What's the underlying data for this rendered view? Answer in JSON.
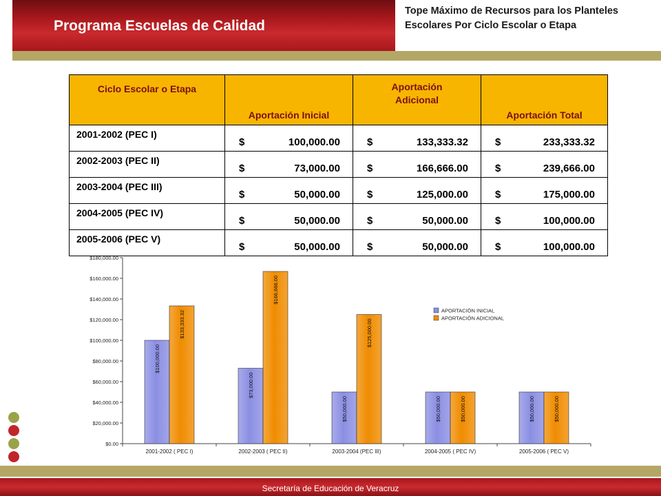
{
  "header": {
    "title": "Programa Escuelas de Calidad"
  },
  "subtitle": "Tope Máximo de Recursos para los Planteles Escolares Por Ciclo Escolar o Etapa",
  "table": {
    "headers": [
      "Ciclo Escolar o Etapa",
      "Aportación Inicial",
      "Aportación Adicional",
      "Aportación Total"
    ],
    "currency": "$",
    "rows": [
      {
        "ciclo": "2001-2002 (PEC I)",
        "inicial": "100,000.00",
        "adicional": "133,333.32",
        "total": "233,333.32"
      },
      {
        "ciclo": "2002-2003 (PEC II)",
        "inicial": "73,000.00",
        "adicional": "166,666.00",
        "total": "239,666.00"
      },
      {
        "ciclo": "2003-2004 (PEC III)",
        "inicial": "50,000.00",
        "adicional": "125,000.00",
        "total": "175,000.00"
      },
      {
        "ciclo": "2004-2005 (PEC IV)",
        "inicial": "50,000.00",
        "adicional": "50,000.00",
        "total": "100,000.00"
      },
      {
        "ciclo": "2005-2006 (PEC V)",
        "inicial": "50,000.00",
        "adicional": "50,000.00",
        "total": "100,000.00"
      }
    ]
  },
  "chart_data": {
    "type": "bar",
    "categories": [
      "2001-2002 ( PEC I)",
      "2002-2003 ( PEC II)",
      "2003-2004 (PEC III)",
      "2004-2005 ( PEC IV)",
      "2005-2006 ( PEC V)"
    ],
    "series": [
      {
        "name": "APORTACIÓN INICIAL",
        "values": [
          100000,
          73000,
          50000,
          50000,
          50000
        ],
        "labels": [
          "$100,000.00",
          "$73,000.00",
          "$50,000.00",
          "$50,000.00",
          "$50,000.00"
        ],
        "color": "#8b8fe3"
      },
      {
        "name": "APORTACIÓN ADICIONAL",
        "values": [
          133333.32,
          166666,
          125000,
          50000,
          50000
        ],
        "labels": [
          "$133,333.32",
          "$166,666.00",
          "$125,000.00",
          "$50,000.00",
          "$50,000.00"
        ],
        "color": "#f08c00"
      }
    ],
    "ylim": [
      0,
      180000
    ],
    "yticks": [
      "$0.00",
      "$20,000.00",
      "$40,000.00",
      "$60,000.00",
      "$80,000.00",
      "$100,000.00",
      "$120,000.00",
      "$140,000.00",
      "$160,000.00",
      "$180,000.00"
    ],
    "legend_position": "right",
    "grid": false
  },
  "decor": {
    "dot_colors": [
      "#9aa24a",
      "#c0262b",
      "#9aa24a",
      "#c0262b"
    ]
  },
  "footer": {
    "text": "Secretaría de Educación de Veracruz"
  }
}
